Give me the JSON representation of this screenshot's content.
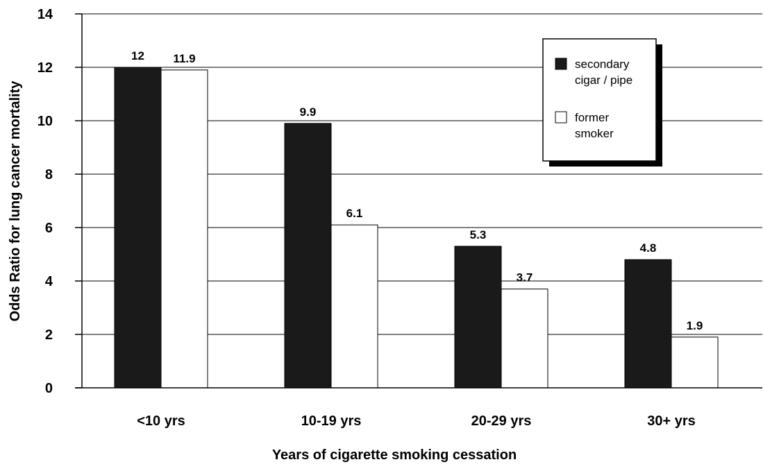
{
  "chart_data": {
    "type": "bar",
    "categories": [
      "<10 yrs",
      "10-19 yrs",
      "20-29 yrs",
      "30+ yrs"
    ],
    "series": [
      {
        "name": "secondary cigar / pipe",
        "values": [
          12,
          9.9,
          5.3,
          4.8
        ],
        "color": "#1a1a1a"
      },
      {
        "name": "former smoker",
        "values": [
          11.9,
          6.1,
          3.7,
          1.9
        ],
        "color": "#ffffff"
      }
    ],
    "data_labels": [
      [
        "12",
        "9.9",
        "5.3",
        "4.8"
      ],
      [
        "11.9",
        "6.1",
        "3.7",
        "1.9"
      ]
    ],
    "title": "",
    "xlabel": "Years of cigarette smoking cessation",
    "ylabel": "Odds Ratio for lung cancer mortality",
    "ylim": [
      0,
      14
    ],
    "yticks": [
      0,
      2,
      4,
      6,
      8,
      10,
      12,
      14
    ],
    "grid": true,
    "legend": {
      "placement": "top-right",
      "entries": [
        [
          "secondary",
          "cigar / pipe"
        ],
        [
          "former",
          "smoker"
        ]
      ]
    }
  }
}
